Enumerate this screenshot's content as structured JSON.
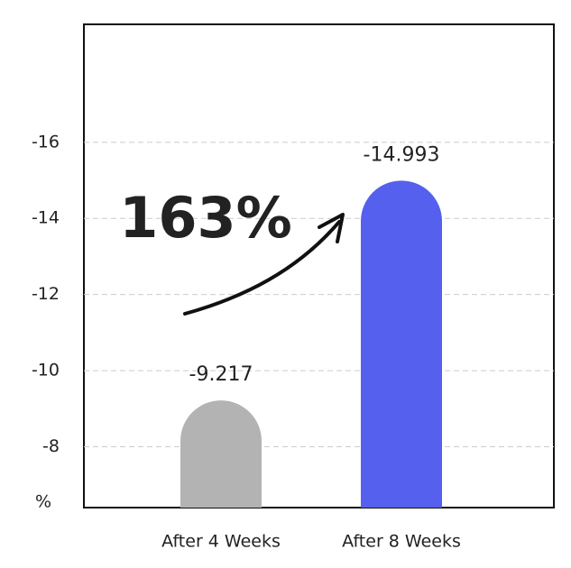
{
  "chart_data": {
    "type": "bar",
    "categories": [
      "After 4 Weeks",
      "After 8 Weeks"
    ],
    "values": [
      -9.217,
      -14.993
    ],
    "colors": [
      "#b3b3b3",
      "#5560ee"
    ],
    "ylabel": "%",
    "ylim": [
      -6.4,
      -19.1
    ],
    "yticks": [
      -8,
      -10,
      -12,
      -14,
      -16
    ],
    "grid": true,
    "annotation": "163%",
    "annotation_color": "#5560ee"
  }
}
